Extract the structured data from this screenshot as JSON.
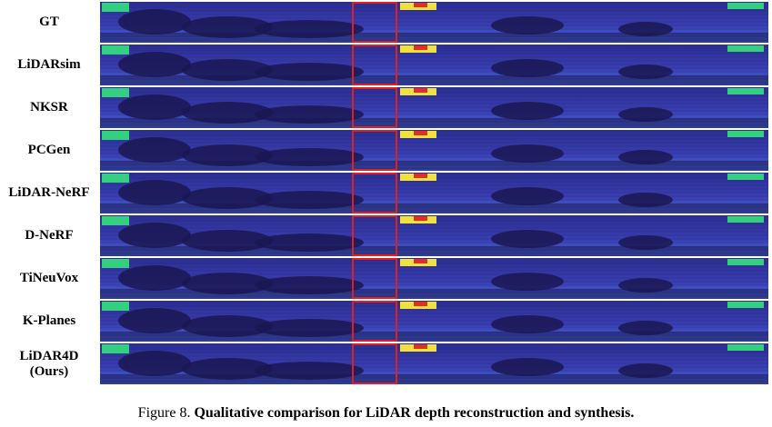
{
  "figure": {
    "rows": [
      {
        "label": "GT"
      },
      {
        "label": "LiDARsim"
      },
      {
        "label": "NKSR"
      },
      {
        "label": "PCGen"
      },
      {
        "label": "LiDAR-NeRF"
      },
      {
        "label": "D-NeRF"
      },
      {
        "label": "TiNeuVox"
      },
      {
        "label": "K-Planes"
      },
      {
        "label": "LiDAR4D\n(Ours)"
      }
    ],
    "colors": {
      "background_depth": "#3a3fb3",
      "far_depth": "#2b2d8f",
      "near_depth": "#1a1650",
      "bright_ground": "#4b6fe0",
      "highlight_green": "#35d07f",
      "highlight_yellow": "#f0e040",
      "highlight_red": "#e03020",
      "highlight_box": "#e02020"
    }
  },
  "caption": {
    "prefix": "Figure 8. ",
    "text": "Qualitative comparison for LiDAR depth reconstruction and synthesis."
  }
}
